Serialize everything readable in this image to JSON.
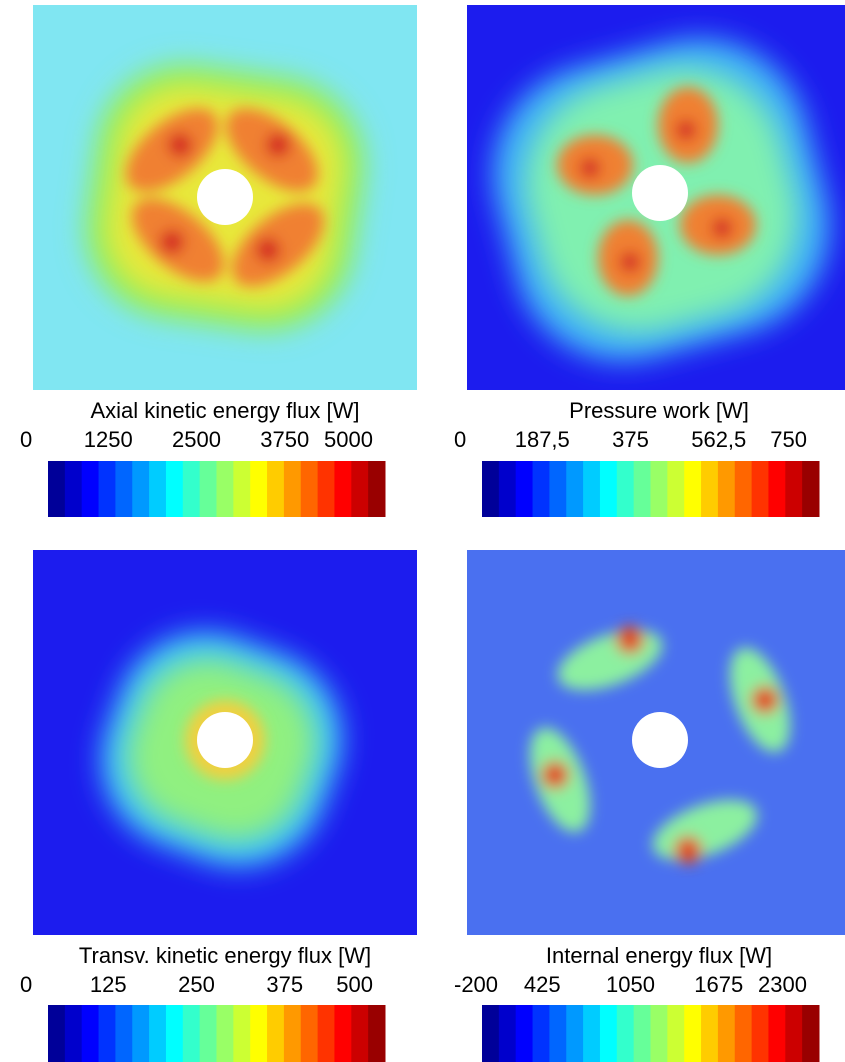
{
  "chart_data": [
    {
      "type": "contour",
      "title": "Axial  kinetic  energy  flux  [W]",
      "clim": [
        0,
        5000
      ],
      "ticks": [
        0,
        1250,
        2500,
        3750,
        5000
      ]
    },
    {
      "type": "contour",
      "title": "Pressure  work  [W]",
      "clim": [
        0,
        750
      ],
      "ticks": [
        0,
        {
          "value": 187.5,
          "label": "187,5"
        },
        375,
        {
          "value": 562.5,
          "label": "562,5"
        },
        750
      ]
    },
    {
      "type": "contour",
      "title": "Transv.  kinetic  energy  flux  [W]",
      "clim": [
        0,
        500
      ],
      "ticks": [
        0,
        125,
        250,
        375,
        500
      ]
    },
    {
      "type": "contour",
      "title": "Internal  energy  flux  [W]",
      "clim": [
        -200,
        2300
      ],
      "ticks": [
        -200,
        425,
        1050,
        1675,
        2300
      ]
    }
  ]
}
